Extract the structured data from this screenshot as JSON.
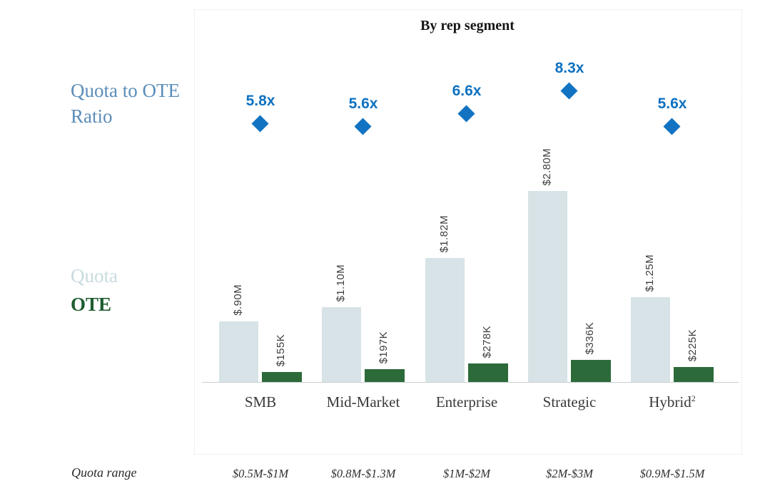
{
  "chart_data": {
    "type": "bar",
    "title": "By rep segment",
    "legend": {
      "ratio_label": "Quota to OTE Ratio",
      "quota_label": "Quota",
      "ote_label": "OTE"
    },
    "categories": [
      {
        "label": "SMB",
        "sup": ""
      },
      {
        "label": "Mid-Market",
        "sup": ""
      },
      {
        "label": "Enterprise",
        "sup": ""
      },
      {
        "label": "Strategic",
        "sup": ""
      },
      {
        "label": "Hybrid",
        "sup": "2"
      }
    ],
    "series": [
      {
        "name": "Quota",
        "type": "bar",
        "unit": "$M",
        "values": [
          0.9,
          1.1,
          1.82,
          2.8,
          1.25
        ],
        "labels": [
          "$.90M",
          "$1.10M",
          "$1.82M",
          "$2.80M",
          "$1.25M"
        ],
        "color": "#d7e3e6"
      },
      {
        "name": "OTE",
        "type": "bar",
        "unit": "$K",
        "values": [
          155,
          197,
          278,
          336,
          225
        ],
        "labels": [
          "$155K",
          "$197K",
          "$278K",
          "$336K",
          "$225K"
        ],
        "color": "#2d6a3a"
      },
      {
        "name": "Quota to OTE Ratio",
        "type": "scatter",
        "marker": "diamond",
        "values": [
          5.8,
          5.6,
          6.6,
          8.3,
          5.6
        ],
        "labels": [
          "5.8x",
          "5.6x",
          "6.6x",
          "8.3x",
          "5.6x"
        ],
        "color": "#1273c2"
      }
    ],
    "footer_row": {
      "label": "Quota range",
      "values": [
        "$0.5M-$1M",
        "$0.8M-$1.3M",
        "$1M-$2M",
        "$2M-$3M",
        "$0.9M-$1.5M"
      ]
    },
    "layout_hints": {
      "gridlines": false,
      "legend_position": "left",
      "bar_axis_visible": false,
      "baseline_visible": true
    },
    "colors": {
      "quota_bar": "#d7e3e6",
      "ote_bar": "#2d6a3a",
      "ratio_marker": "#1273c2",
      "legend_ratio_text": "#5b8db9",
      "legend_quota_text": "#c8dbdf",
      "legend_ote_text": "#1d5c2f"
    }
  }
}
